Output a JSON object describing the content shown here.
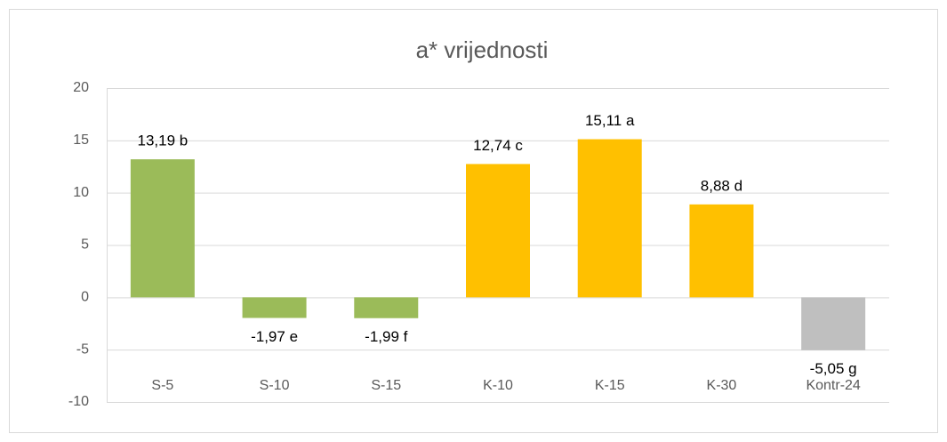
{
  "chart_data": {
    "type": "bar",
    "title": "a* vrijednosti",
    "categories": [
      "S-5",
      "S-10",
      "S-15",
      "K-10",
      "K-15",
      "K-30",
      "Kontr-24"
    ],
    "values": [
      13.19,
      -1.97,
      -1.99,
      12.74,
      15.11,
      8.88,
      -5.05
    ],
    "value_labels": [
      "13,19 b",
      "-1,97 e",
      "-1,99 f",
      "12,74 c",
      "15,11 a",
      "8,88 d",
      "-5,05 g"
    ],
    "colors": [
      "#9bbb59",
      "#9bbb59",
      "#9bbb59",
      "#ffc000",
      "#ffc000",
      "#ffc000",
      "#bfbfbf"
    ],
    "ylim": [
      -10,
      20
    ],
    "yticks": [
      -10,
      -5,
      0,
      5,
      10,
      15,
      20
    ],
    "grid": true
  }
}
